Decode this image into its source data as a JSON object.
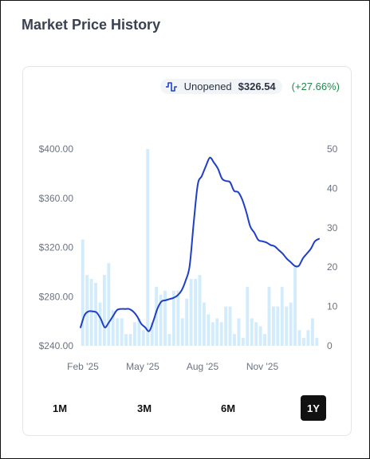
{
  "page": {
    "title": "Market Price History"
  },
  "legend": {
    "icon": "step-line-icon",
    "series_label": "Unopened",
    "current_price": "$326.54",
    "change": "(+27.66%)",
    "colors": {
      "line": "#1f3fc9",
      "bars": "#d3ecfb",
      "change": "#1f8a4c"
    }
  },
  "ranges": {
    "items": [
      {
        "label": "1M",
        "active": false
      },
      {
        "label": "3M",
        "active": false
      },
      {
        "label": "6M",
        "active": false
      },
      {
        "label": "1Y",
        "active": true
      }
    ]
  },
  "chart_data": {
    "type": "line",
    "title": "",
    "x_ticks": [
      "Feb '25",
      "May '25",
      "Aug '25",
      "Nov '25"
    ],
    "y_left": {
      "label": "",
      "range": [
        240,
        400
      ],
      "ticks": [
        "$400.00",
        "$360.00",
        "$320.00",
        "$280.00",
        "$240.00"
      ]
    },
    "y_right": {
      "label": "",
      "range": [
        0,
        50
      ],
      "ticks": [
        "50",
        "40",
        "30",
        "20",
        "10",
        "0"
      ]
    },
    "grid": false,
    "legend_position": "top-right",
    "price_series": {
      "name": "Unopened",
      "values": [
        255,
        265,
        268,
        268,
        267,
        262,
        255,
        259,
        264,
        269,
        270,
        270,
        270,
        268,
        264,
        258,
        255,
        252,
        260,
        270,
        276,
        277,
        278,
        279,
        281,
        285,
        293,
        305,
        340,
        371,
        378,
        386,
        393,
        389,
        384,
        376,
        374,
        373,
        366,
        365,
        359,
        349,
        337,
        332,
        326,
        325,
        324,
        322,
        321,
        318,
        315,
        311,
        308,
        305,
        305,
        311,
        315,
        319,
        325,
        327
      ]
    },
    "volume_bars": {
      "values": [
        27,
        18,
        17,
        16,
        11,
        18,
        21,
        9,
        7,
        7,
        3,
        3,
        6,
        7,
        4,
        50,
        6,
        15,
        13,
        14,
        3,
        14,
        14,
        7,
        12,
        17,
        17,
        18,
        11,
        8,
        6,
        7,
        6,
        10,
        10,
        3,
        7,
        2,
        15,
        7,
        6,
        5,
        3,
        15,
        10,
        10,
        15,
        10,
        11,
        20,
        4,
        2,
        4,
        7,
        2
      ]
    }
  }
}
